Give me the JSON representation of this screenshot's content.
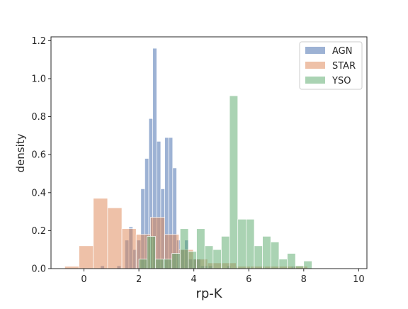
{
  "chart_data": {
    "type": "histogram",
    "xlabel": "rp-K",
    "ylabel": "density",
    "xlim": [
      -1.2,
      10.3
    ],
    "ylim": [
      0,
      1.22
    ],
    "xticks": [
      0,
      2,
      4,
      6,
      8,
      10
    ],
    "yticks": [
      0.0,
      0.2,
      0.4,
      0.6,
      0.8,
      1.0,
      1.2
    ],
    "xtick_labels": [
      "0",
      "2",
      "4",
      "6",
      "8",
      "10"
    ],
    "ytick_labels": [
      "0.0",
      "0.2",
      "0.4",
      "0.6",
      "0.8",
      "1.0",
      "1.2"
    ],
    "legend_position": "top-right",
    "series": [
      {
        "name": "AGN",
        "color": "#4c72b0",
        "alpha": 0.55,
        "bin_width": 0.145,
        "bins": [
          [
            0.6,
            0.015
          ],
          [
            1.2,
            0.015
          ],
          [
            1.49,
            0.15
          ],
          [
            1.635,
            0.22
          ],
          [
            1.78,
            0.1
          ],
          [
            1.925,
            0.15
          ],
          [
            2.07,
            0.42
          ],
          [
            2.215,
            0.58
          ],
          [
            2.36,
            0.79
          ],
          [
            2.505,
            1.16
          ],
          [
            2.65,
            0.67
          ],
          [
            2.795,
            0.42
          ],
          [
            2.94,
            0.69
          ],
          [
            3.085,
            0.69
          ],
          [
            3.23,
            0.53
          ],
          [
            3.375,
            0.15
          ],
          [
            3.52,
            0.1
          ],
          [
            3.665,
            0.15
          ],
          [
            3.81,
            0.05
          ],
          [
            3.955,
            0.05
          ],
          [
            4.1,
            0.05
          ],
          [
            4.245,
            0.015
          ],
          [
            4.39,
            0.015
          ],
          [
            4.535,
            0.015
          ],
          [
            5.2,
            0.015
          ],
          [
            7.55,
            0.015
          ]
        ]
      },
      {
        "name": "STAR",
        "color": "#dd8452",
        "alpha": 0.5,
        "bin_width": 0.52,
        "bins": [
          [
            -0.7,
            0.012
          ],
          [
            -0.18,
            0.12
          ],
          [
            0.34,
            0.37
          ],
          [
            0.86,
            0.32
          ],
          [
            1.38,
            0.21
          ],
          [
            1.9,
            0.18
          ],
          [
            2.42,
            0.27
          ],
          [
            2.94,
            0.18
          ],
          [
            3.46,
            0.1
          ],
          [
            3.98,
            0.05
          ],
          [
            4.5,
            0.03
          ],
          [
            5.02,
            0.03
          ],
          [
            5.54,
            0.012
          ],
          [
            6.06,
            0.012
          ],
          [
            6.58,
            0.012
          ],
          [
            7.1,
            0.012
          ],
          [
            7.62,
            0.012
          ]
        ]
      },
      {
        "name": "YSO",
        "color": "#55a868",
        "alpha": 0.5,
        "bin_width": 0.3,
        "bins": [
          [
            2.0,
            0.05
          ],
          [
            2.3,
            0.17
          ],
          [
            2.6,
            0.05
          ],
          [
            2.9,
            0.05
          ],
          [
            3.2,
            0.08
          ],
          [
            3.5,
            0.21
          ],
          [
            3.8,
            0.09
          ],
          [
            4.1,
            0.21
          ],
          [
            4.4,
            0.12
          ],
          [
            4.7,
            0.1
          ],
          [
            5.0,
            0.17
          ],
          [
            5.3,
            0.91
          ],
          [
            5.6,
            0.26
          ],
          [
            5.9,
            0.26
          ],
          [
            6.2,
            0.12
          ],
          [
            6.5,
            0.17
          ],
          [
            6.8,
            0.14
          ],
          [
            7.1,
            0.05
          ],
          [
            7.4,
            0.08
          ],
          [
            7.7,
            0.015
          ],
          [
            8.0,
            0.04
          ]
        ]
      }
    ]
  }
}
